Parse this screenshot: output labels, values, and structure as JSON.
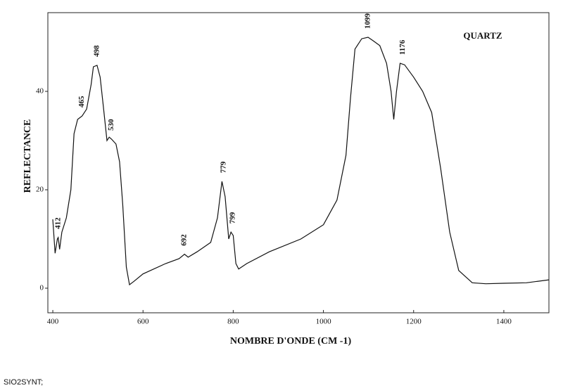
{
  "chart_data": {
    "type": "line",
    "title": "QUARTZ",
    "x_label": "NOMBRE D'ONDE (CM -1)",
    "y_label": "REFLECTANCE",
    "footer": "SIO2SYNT;",
    "xlim": [
      389,
      1500
    ],
    "ylim": [
      -5,
      56
    ],
    "xticks": [
      400,
      600,
      800,
      1000,
      1200,
      1400
    ],
    "yticks": [
      0,
      20,
      40
    ],
    "grid": false,
    "x": [
      400,
      405,
      410,
      412,
      415,
      420,
      430,
      440,
      447,
      455,
      465,
      475,
      485,
      490,
      498,
      505,
      512,
      520,
      525,
      530,
      540,
      548,
      555,
      563,
      570,
      580,
      600,
      650,
      680,
      692,
      700,
      720,
      750,
      765,
      775,
      782,
      790,
      795,
      800,
      806,
      812,
      830,
      880,
      950,
      1000,
      1030,
      1050,
      1060,
      1070,
      1085,
      1099,
      1110,
      1125,
      1140,
      1150,
      1156,
      1162,
      1170,
      1180,
      1200,
      1220,
      1240,
      1260,
      1280,
      1300,
      1330,
      1360,
      1400,
      1450,
      1500
    ],
    "series": [
      {
        "name": "QUARTZ",
        "color": "#111111",
        "values": [
          14,
          7.1,
          10,
          10.3,
          7.9,
          11.4,
          14.3,
          20,
          31.4,
          34.3,
          35,
          36.4,
          41.4,
          45,
          45.3,
          42.9,
          37,
          30,
          30.7,
          30.3,
          29.3,
          25.7,
          17,
          4.3,
          0.7,
          1.4,
          2.9,
          5,
          6,
          6.9,
          6.3,
          7.4,
          9.3,
          14.3,
          21.7,
          18.6,
          10,
          11.4,
          10.7,
          5,
          3.9,
          5,
          7.4,
          10,
          12.9,
          17.9,
          27,
          38.6,
          48.6,
          50.7,
          51,
          50.3,
          49.3,
          45.7,
          40,
          34.3,
          40,
          45.7,
          45.4,
          42.9,
          40,
          35.7,
          24.3,
          11.4,
          3.6,
          1.1,
          0.9,
          1,
          1.1,
          1.7
        ]
      }
    ],
    "annotations": [
      {
        "x": 412,
        "y": 10.3
      },
      {
        "x": 465,
        "y": 35
      },
      {
        "x": 498,
        "y": 45.3
      },
      {
        "x": 530,
        "y": 30.3
      },
      {
        "x": 692,
        "y": 6.9
      },
      {
        "x": 779,
        "y": 21.7
      },
      {
        "x": 799,
        "y": 11.4
      },
      {
        "x": 1099,
        "y": 51
      },
      {
        "x": 1176,
        "y": 45.7
      }
    ]
  }
}
